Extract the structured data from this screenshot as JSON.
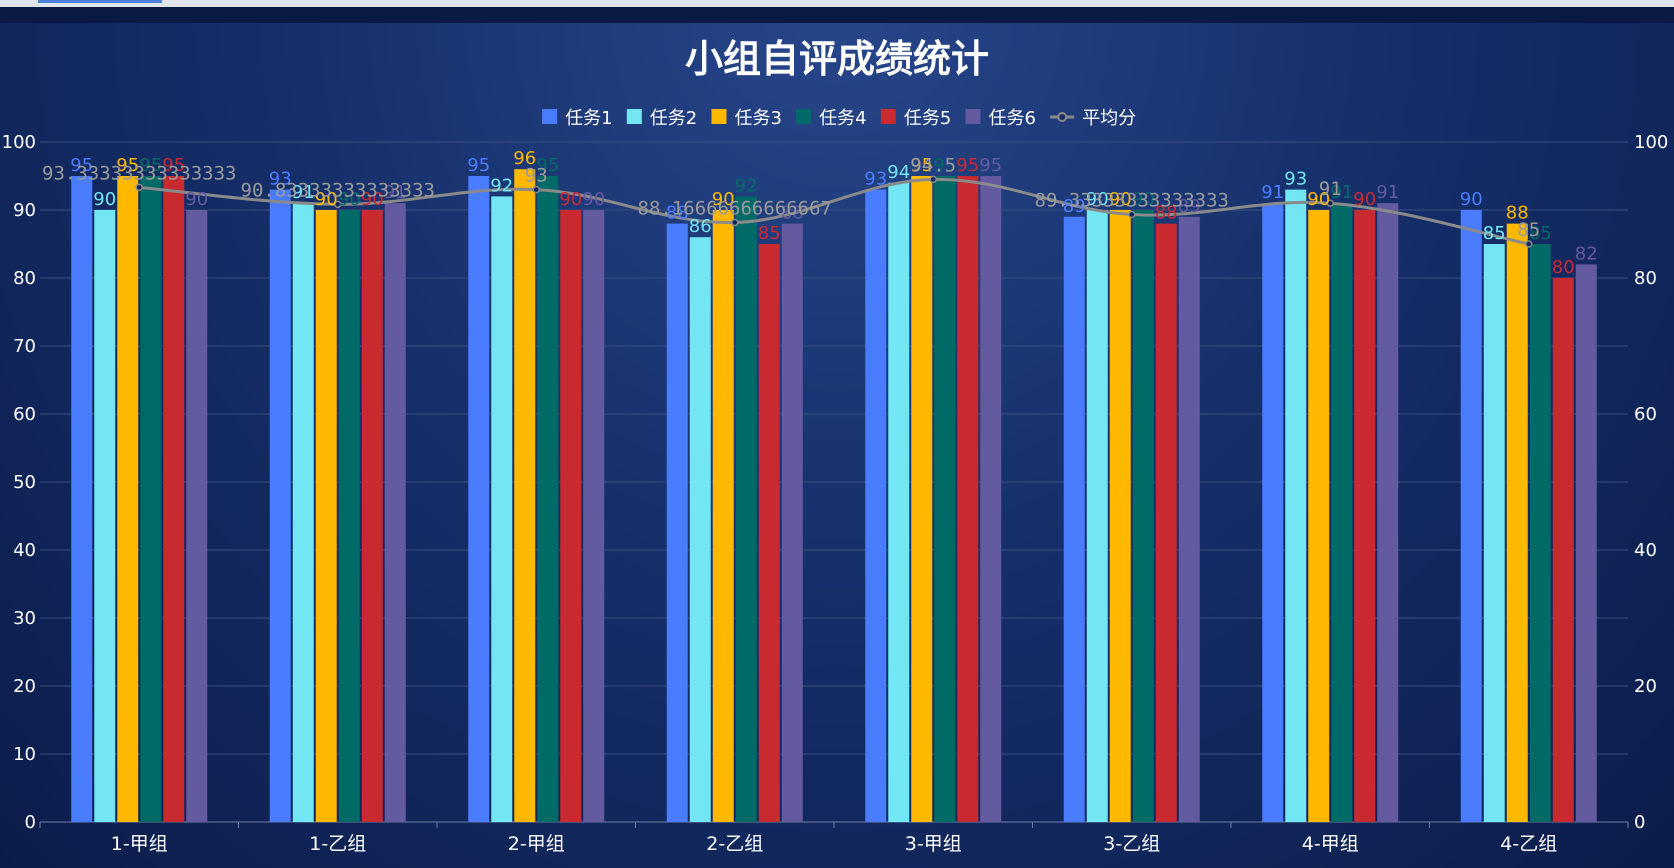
{
  "chart_data": {
    "type": "bar",
    "title": "小组自评成绩统计",
    "categories": [
      "1-甲组",
      "1-乙组",
      "2-甲组",
      "2-乙组",
      "3-甲组",
      "3-乙组",
      "4-甲组",
      "4-乙组"
    ],
    "series": [
      {
        "name": "任务1",
        "color": "#4a7cff",
        "values": [
          95,
          93,
          95,
          88,
          93,
          89,
          91,
          90
        ]
      },
      {
        "name": "任务2",
        "color": "#72e6f2",
        "values": [
          90,
          91,
          92,
          86,
          94,
          90,
          93,
          85
        ]
      },
      {
        "name": "任务3",
        "color": "#ffb800",
        "values": [
          95,
          90,
          96,
          90,
          95,
          90,
          90,
          88
        ]
      },
      {
        "name": "任务4",
        "color": "#006b66",
        "values": [
          95,
          90,
          95,
          92,
          95,
          90,
          91,
          85
        ]
      },
      {
        "name": "任务5",
        "color": "#c92a30",
        "values": [
          95,
          90,
          90,
          85,
          95,
          88,
          90,
          80
        ]
      },
      {
        "name": "任务6",
        "color": "#645aa0",
        "values": [
          90,
          91,
          90,
          88,
          95,
          89,
          91,
          82
        ]
      }
    ],
    "line_series": {
      "name": "平均分",
      "type": "line",
      "color": "#8a8a8a",
      "values": [
        93.33333333333333,
        90.83333333333333,
        93,
        88.16666666666667,
        94.5,
        89.33333333333333,
        91,
        85
      ],
      "labels": [
        "93.33333333333333",
        "90.83333333333333",
        "93",
        "88.16666666666667",
        "94.5",
        "89.33333333333333",
        "91",
        "85"
      ]
    },
    "ylim": [
      0,
      100
    ],
    "yticks": [
      0,
      10,
      20,
      30,
      40,
      50,
      60,
      70,
      80,
      90,
      100
    ],
    "y2ticks": [
      0,
      20,
      40,
      60,
      80,
      100
    ],
    "xlabel": "",
    "ylabel": "",
    "legend_position": "top-center",
    "grid": true
  }
}
